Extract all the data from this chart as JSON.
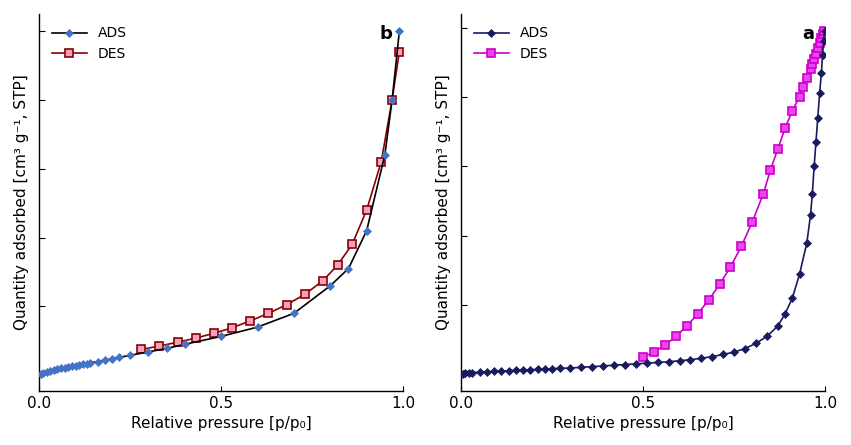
{
  "panel_b": {
    "label": "b",
    "ads_line_color": "#000000",
    "ads_marker_color": "#4472c4",
    "des_line_color": "#8b0000",
    "des_marker_face": "#f4a0c0",
    "des_marker_edge": "#8b0000",
    "ads_x": [
      0.005,
      0.01,
      0.02,
      0.03,
      0.04,
      0.05,
      0.06,
      0.07,
      0.08,
      0.09,
      0.1,
      0.11,
      0.12,
      0.13,
      0.14,
      0.16,
      0.18,
      0.2,
      0.22,
      0.25,
      0.3,
      0.35,
      0.4,
      0.5,
      0.6,
      0.7,
      0.8,
      0.85,
      0.9,
      0.95,
      0.97,
      0.99
    ],
    "ads_y": [
      0.005,
      0.007,
      0.01,
      0.013,
      0.016,
      0.018,
      0.02,
      0.022,
      0.024,
      0.026,
      0.028,
      0.03,
      0.032,
      0.034,
      0.036,
      0.04,
      0.044,
      0.048,
      0.052,
      0.058,
      0.068,
      0.078,
      0.09,
      0.113,
      0.14,
      0.18,
      0.26,
      0.31,
      0.42,
      0.64,
      0.8,
      1.0
    ],
    "des_x": [
      0.28,
      0.33,
      0.38,
      0.43,
      0.48,
      0.53,
      0.58,
      0.63,
      0.68,
      0.73,
      0.78,
      0.82,
      0.86,
      0.9,
      0.94,
      0.97,
      0.99
    ],
    "des_y": [
      0.075,
      0.085,
      0.096,
      0.108,
      0.122,
      0.138,
      0.158,
      0.18,
      0.205,
      0.235,
      0.275,
      0.32,
      0.38,
      0.48,
      0.62,
      0.8,
      0.94
    ],
    "xlabel": "Relative pressure [p/p₀]",
    "ylabel": "Quantity adsorbed [cm³ g⁻¹, STP]",
    "xlim": [
      0,
      1.0
    ],
    "xticks": [
      0,
      0.5,
      1.0
    ]
  },
  "panel_a": {
    "label": "a",
    "ads_line_color": "#1a1a5e",
    "ads_marker_color": "#1a1a5e",
    "des_line_color": "#cc00cc",
    "des_marker_face": "#ee44ee",
    "des_marker_edge": "#cc00cc",
    "ads_x": [
      0.005,
      0.01,
      0.02,
      0.03,
      0.05,
      0.07,
      0.09,
      0.11,
      0.13,
      0.15,
      0.17,
      0.19,
      0.21,
      0.23,
      0.25,
      0.27,
      0.3,
      0.33,
      0.36,
      0.39,
      0.42,
      0.45,
      0.48,
      0.51,
      0.54,
      0.57,
      0.6,
      0.63,
      0.66,
      0.69,
      0.72,
      0.75,
      0.78,
      0.81,
      0.84,
      0.87,
      0.89,
      0.91,
      0.93,
      0.95,
      0.96,
      0.965,
      0.97,
      0.975,
      0.98,
      0.985,
      0.99,
      0.993,
      0.996,
      0.999
    ],
    "ads_y": [
      0.003,
      0.004,
      0.005,
      0.006,
      0.007,
      0.008,
      0.009,
      0.01,
      0.011,
      0.012,
      0.013,
      0.014,
      0.015,
      0.016,
      0.017,
      0.018,
      0.019,
      0.021,
      0.023,
      0.025,
      0.027,
      0.029,
      0.031,
      0.033,
      0.035,
      0.037,
      0.04,
      0.043,
      0.047,
      0.052,
      0.058,
      0.065,
      0.075,
      0.09,
      0.11,
      0.14,
      0.175,
      0.22,
      0.29,
      0.38,
      0.46,
      0.52,
      0.6,
      0.67,
      0.74,
      0.81,
      0.87,
      0.92,
      0.96,
      0.99
    ],
    "des_x": [
      0.5,
      0.53,
      0.56,
      0.59,
      0.62,
      0.65,
      0.68,
      0.71,
      0.74,
      0.77,
      0.8,
      0.83,
      0.85,
      0.87,
      0.89,
      0.91,
      0.93,
      0.94,
      0.95,
      0.96,
      0.965,
      0.97,
      0.975,
      0.98,
      0.985,
      0.99,
      0.993,
      0.996
    ],
    "des_y": [
      0.05,
      0.065,
      0.085,
      0.11,
      0.14,
      0.175,
      0.215,
      0.26,
      0.31,
      0.37,
      0.44,
      0.52,
      0.59,
      0.65,
      0.71,
      0.76,
      0.8,
      0.83,
      0.855,
      0.88,
      0.895,
      0.91,
      0.925,
      0.94,
      0.955,
      0.97,
      0.98,
      0.99
    ],
    "xlabel": "Relative pressure [p/p₀]",
    "ylabel": "Quantity adsorbed [cm³ g⁻¹, STP]",
    "xlim": [
      0,
      1.0
    ],
    "xticks": [
      0,
      0.5,
      1.0
    ]
  },
  "background_color": "#ffffff",
  "font_size": 11
}
